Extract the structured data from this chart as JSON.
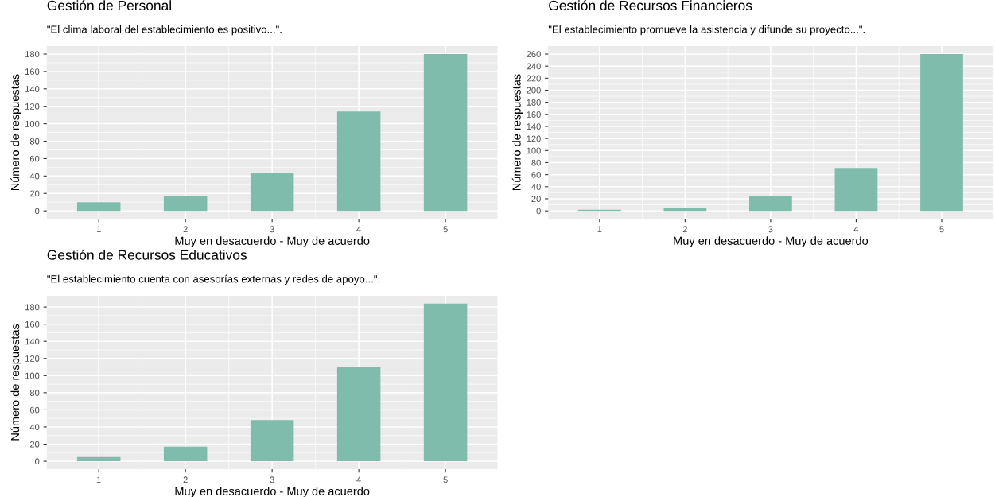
{
  "chart_data": [
    {
      "type": "bar",
      "title": "Gestión de Personal",
      "subtitle": "\"El clima laboral del establecimiento es positivo...\".",
      "xlabel": "Muy en desacuerdo - Muy de acuerdo",
      "ylabel": "Número de respuestas",
      "categories": [
        "1",
        "2",
        "3",
        "4",
        "5"
      ],
      "values": [
        10,
        17,
        43,
        114,
        180
      ],
      "color": "#80bcac",
      "ylim": [
        -9,
        189
      ],
      "yticks": [
        0,
        20,
        40,
        60,
        80,
        100,
        120,
        140,
        160,
        180
      ],
      "grid": true
    },
    {
      "type": "bar",
      "title": "Gestión de Recursos Financieros",
      "subtitle": "\"El establecimiento promueve la asistencia y difunde su proyecto...\".",
      "xlabel": "Muy en desacuerdo - Muy de acuerdo",
      "ylabel": "Número de respuestas",
      "categories": [
        "1",
        "2",
        "3",
        "4",
        "5"
      ],
      "values": [
        2,
        4,
        25,
        71,
        260
      ],
      "color": "#80bcac",
      "ylim": [
        -13,
        273
      ],
      "yticks": [
        0,
        20,
        40,
        60,
        80,
        100,
        120,
        140,
        160,
        180,
        200,
        220,
        240,
        260
      ],
      "grid": true
    },
    {
      "type": "bar",
      "title": "Gestión de Recursos Educativos",
      "subtitle": "\"El establecimiento cuenta con asesorías externas y redes de apoyo...\".",
      "xlabel": "Muy en desacuerdo - Muy de acuerdo",
      "ylabel": "Número de respuestas",
      "categories": [
        "1",
        "2",
        "3",
        "4",
        "5"
      ],
      "values": [
        5,
        17,
        48,
        110,
        184
      ],
      "color": "#80bcac",
      "ylim": [
        -9.2,
        193.2
      ],
      "yticks": [
        0,
        20,
        40,
        60,
        80,
        100,
        120,
        140,
        160,
        180
      ],
      "grid": true
    }
  ]
}
